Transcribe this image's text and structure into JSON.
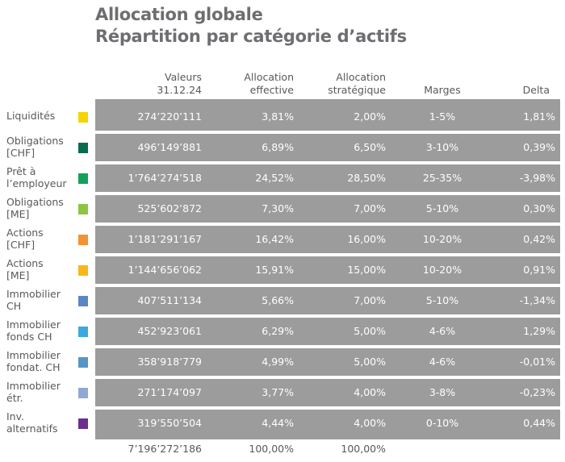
{
  "title": {
    "line1": "Allocation globale",
    "line2": "Répartition par catégorie d’actifs"
  },
  "headers": {
    "valeurs_1": "Valeurs",
    "valeurs_2": "31.12.24",
    "effective_1": "Allocation",
    "effective_2": "effective",
    "strategique_1": "Allocation",
    "strategique_2": "stratégique",
    "marges": "Marges",
    "delta": "Delta"
  },
  "rows": [
    {
      "label1": "Liquidités",
      "label2": "",
      "color": "#f5d400",
      "valeur": "274’220’111",
      "effective": "3,81%",
      "strategique": "2,00%",
      "marges": "1-5%",
      "delta": "1,81%"
    },
    {
      "label1": "Obligations",
      "label2": "[CHF]",
      "color": "#0a6b4e",
      "valeur": "496’149’881",
      "effective": "6,89%",
      "strategique": "6,50%",
      "marges": "3-10%",
      "delta": "0,39%"
    },
    {
      "label1": "Prêt à",
      "label2": "l’employeur",
      "color": "#13a15a",
      "valeur": "1’764’274’518",
      "effective": "24,52%",
      "strategique": "28,50%",
      "marges": "25-35%",
      "delta": "-3,98%"
    },
    {
      "label1": "Obligations",
      "label2": "[ME]",
      "color": "#8cc63f",
      "valeur": "525’602’872",
      "effective": "7,30%",
      "strategique": "7,00%",
      "marges": "5-10%",
      "delta": "0,30%"
    },
    {
      "label1": "Actions",
      "label2": "[CHF]",
      "color": "#f39230",
      "valeur": "1’181’291’167",
      "effective": "16,42%",
      "strategique": "16,00%",
      "marges": "10-20%",
      "delta": "0,42%"
    },
    {
      "label1": "Actions",
      "label2": "[ME]",
      "color": "#f7b719",
      "valeur": "1’144’656’062",
      "effective": "15,91%",
      "strategique": "15,00%",
      "marges": "10-20%",
      "delta": "0,91%"
    },
    {
      "label1": "Immobilier",
      "label2": "CH",
      "color": "#5b86c5",
      "valeur": "407’511’134",
      "effective": "5,66%",
      "strategique": "7,00%",
      "marges": "5-10%",
      "delta": "-1,34%"
    },
    {
      "label1": "Immobilier",
      "label2": "fonds CH",
      "color": "#3ba8df",
      "valeur": "452’923’061",
      "effective": "6,29%",
      "strategique": "5,00%",
      "marges": "4-6%",
      "delta": "1,29%"
    },
    {
      "label1": "Immobilier",
      "label2": "fondat. CH",
      "color": "#5596c8",
      "valeur": "358’918’779",
      "effective": "4,99%",
      "strategique": "5,00%",
      "marges": "4-6%",
      "delta": "-0,01%"
    },
    {
      "label1": "Immobilier",
      "label2": "étr.",
      "color": "#8fa9d6",
      "valeur": "271’174’097",
      "effective": "3,77%",
      "strategique": "4,00%",
      "marges": "3-8%",
      "delta": "-0,23%"
    },
    {
      "label1": "Inv.",
      "label2": "alternatifs",
      "color": "#6a2f8f",
      "valeur": "319’550’504",
      "effective": "4,44%",
      "strategique": "4,00%",
      "marges": "0-10%",
      "delta": "0,44%"
    }
  ],
  "totals": {
    "valeur": "7’196’272’186",
    "effective": "100,00%",
    "strategique": "100,00%"
  }
}
